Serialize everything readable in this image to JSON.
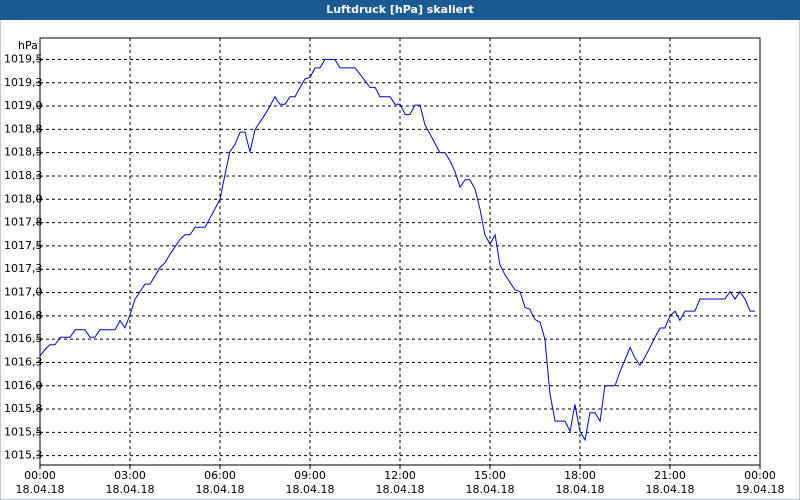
{
  "chart_data": {
    "type": "line",
    "title": "Luftdruck [hPa] skaliert",
    "y_label": "hPa",
    "color": "#0000cc",
    "grid": true,
    "xlim": [
      0,
      24
    ],
    "xticks": [
      {
        "value": 0,
        "label": "00:00"
      },
      {
        "value": 3,
        "label": "03:00"
      },
      {
        "value": 6,
        "label": "06:00"
      },
      {
        "value": 9,
        "label": "09:00"
      },
      {
        "value": 12,
        "label": "12:00"
      },
      {
        "value": 15,
        "label": "15:00"
      },
      {
        "value": 18,
        "label": "18:00"
      },
      {
        "value": 21,
        "label": "21:00"
      },
      {
        "value": 24,
        "label": "00:00"
      }
    ],
    "xtick_dates": [
      "18.04.18",
      "18.04.18",
      "18.04.18",
      "18.04.18",
      "18.04.18",
      "18.04.18",
      "18.04.18",
      "18.04.18",
      "19.04.18"
    ],
    "ylim": [
      1015.15,
      1019.73
    ],
    "yticks": [
      {
        "value": 1015.25,
        "label": "1015,3"
      },
      {
        "value": 1015.5,
        "label": "1015,5"
      },
      {
        "value": 1015.75,
        "label": "1015,8"
      },
      {
        "value": 1016.0,
        "label": "1016,0"
      },
      {
        "value": 1016.25,
        "label": "1016,3"
      },
      {
        "value": 1016.5,
        "label": "1016,5"
      },
      {
        "value": 1016.75,
        "label": "1016,8"
      },
      {
        "value": 1017.0,
        "label": "1017,0"
      },
      {
        "value": 1017.25,
        "label": "1017,3"
      },
      {
        "value": 1017.5,
        "label": "1017,5"
      },
      {
        "value": 1017.75,
        "label": "1017,8"
      },
      {
        "value": 1018.0,
        "label": "1018,0"
      },
      {
        "value": 1018.25,
        "label": "1018,3"
      },
      {
        "value": 1018.5,
        "label": "1018,5"
      },
      {
        "value": 1018.75,
        "label": "1018,8"
      },
      {
        "value": 1019.0,
        "label": "1019,0"
      },
      {
        "value": 1019.25,
        "label": "1019,3"
      },
      {
        "value": 1019.5,
        "label": "1019,5"
      }
    ],
    "x": [
      0.0,
      0.17,
      0.33,
      0.5,
      0.67,
      1.0,
      1.17,
      1.5,
      1.67,
      1.83,
      2.0,
      2.5,
      2.67,
      2.83,
      3.0,
      3.17,
      3.5,
      3.67,
      4.0,
      4.17,
      4.33,
      4.67,
      4.83,
      5.0,
      5.17,
      5.5,
      5.67,
      6.0,
      6.17,
      6.33,
      6.5,
      6.67,
      6.83,
      7.0,
      7.17,
      7.5,
      7.67,
      7.83,
      8.0,
      8.17,
      8.33,
      8.5,
      8.67,
      8.83,
      9.0,
      9.17,
      9.33,
      9.5,
      9.83,
      10.0,
      10.5,
      10.67,
      11.0,
      11.17,
      11.33,
      11.67,
      11.83,
      12.0,
      12.17,
      12.33,
      12.5,
      12.67,
      12.83,
      13.0,
      13.33,
      13.5,
      13.67,
      13.83,
      14.0,
      14.17,
      14.33,
      14.5,
      14.67,
      14.83,
      15.0,
      15.17,
      15.33,
      15.5,
      15.83,
      16.0,
      16.17,
      16.33,
      16.5,
      16.67,
      16.83,
      17.0,
      17.17,
      17.5,
      17.67,
      17.83,
      18.0,
      18.17,
      18.33,
      18.5,
      18.67,
      18.83,
      19.17,
      19.33,
      19.67,
      19.83,
      20.0,
      20.17,
      20.33,
      20.5,
      20.67,
      20.83,
      21.0,
      21.17,
      21.33,
      21.5,
      21.83,
      22.0,
      22.83,
      23.0,
      23.17,
      23.33,
      23.5,
      23.67,
      23.83
    ],
    "values": [
      1016.32,
      1016.39,
      1016.44,
      1016.44,
      1016.52,
      1016.52,
      1016.6,
      1016.6,
      1016.52,
      1016.52,
      1016.6,
      1016.6,
      1016.7,
      1016.62,
      1016.76,
      1016.93,
      1017.09,
      1017.09,
      1017.27,
      1017.32,
      1017.41,
      1017.57,
      1017.62,
      1017.62,
      1017.7,
      1017.7,
      1017.8,
      1018.0,
      1018.27,
      1018.51,
      1018.59,
      1018.72,
      1018.72,
      1018.51,
      1018.75,
      1018.91,
      1019.0,
      1019.1,
      1019.02,
      1019.02,
      1019.1,
      1019.1,
      1019.2,
      1019.29,
      1019.31,
      1019.41,
      1019.41,
      1019.5,
      1019.5,
      1019.41,
      1019.41,
      1019.34,
      1019.2,
      1019.2,
      1019.1,
      1019.1,
      1019.02,
      1019.02,
      1018.91,
      1018.91,
      1019.01,
      1019.01,
      1018.8,
      1018.7,
      1018.5,
      1018.5,
      1018.41,
      1018.3,
      1018.13,
      1018.21,
      1018.21,
      1018.11,
      1017.89,
      1017.62,
      1017.52,
      1017.62,
      1017.3,
      1017.19,
      1017.03,
      1017.01,
      1016.84,
      1016.82,
      1016.71,
      1016.68,
      1016.5,
      1015.91,
      1015.62,
      1015.62,
      1015.51,
      1015.8,
      1015.51,
      1015.42,
      1015.71,
      1015.71,
      1015.62,
      1016.0,
      1016.0,
      1016.15,
      1016.41,
      1016.3,
      1016.22,
      1016.31,
      1016.41,
      1016.52,
      1016.62,
      1016.62,
      1016.75,
      1016.8,
      1016.7,
      1016.8,
      1016.8,
      1016.93,
      1016.93,
      1017.01,
      1016.93,
      1017.01,
      1016.93,
      1016.8,
      1016.8
    ]
  }
}
